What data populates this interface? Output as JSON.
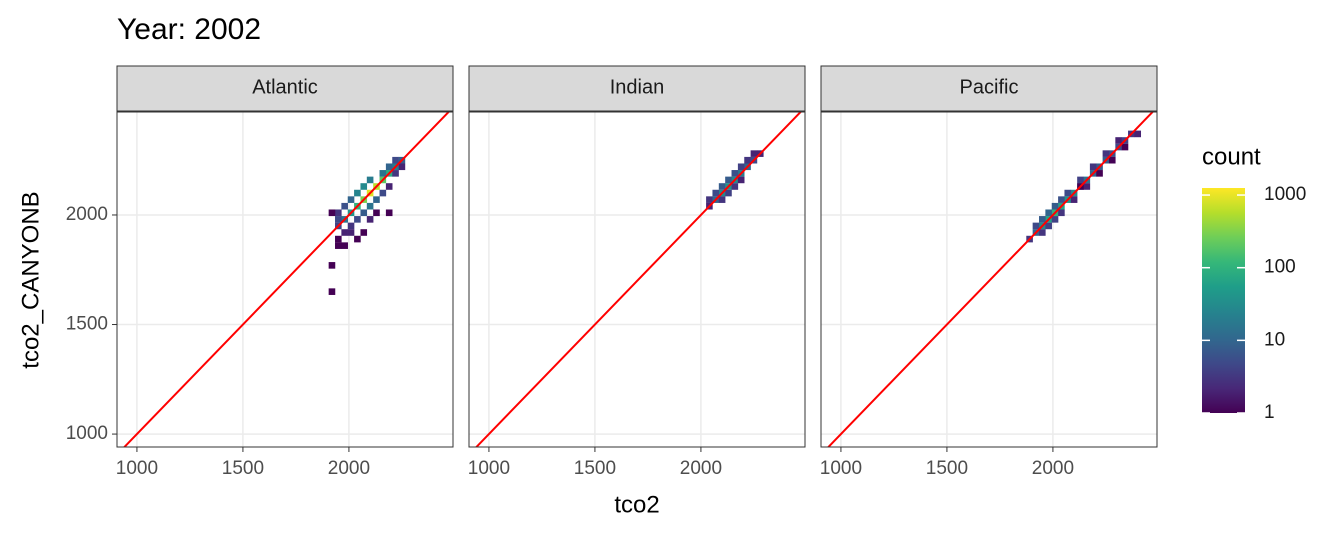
{
  "chart_data": {
    "type": "bin2d",
    "title": "Year: 2002",
    "x_label": "tco2",
    "y_label": "tco2_CANYONB",
    "xlim": [
      906,
      2491
    ],
    "ylim": [
      941,
      2470
    ],
    "xticks": [
      1000,
      1500,
      2000
    ],
    "yticks": [
      1000,
      1500,
      2000
    ],
    "grid": true,
    "reference_line_color": "#ff0000",
    "color_scale": "viridis",
    "color_log": true,
    "colorlim": [
      1,
      1250
    ],
    "colorticks": [
      1,
      10,
      100,
      1000
    ],
    "legend_title": "count",
    "facets": [
      {
        "name": "Atlantic",
        "x": [
          2100,
          2130,
          2070,
          2160,
          2040,
          2190,
          2010,
          2220,
          2250,
          1980,
          1950,
          2070,
          2100,
          2040,
          2130,
          2100,
          2010,
          2070,
          1980,
          2040,
          1950,
          1950,
          2160,
          2190,
          2220,
          2160,
          2010,
          1980,
          1950,
          2040,
          2010,
          2100,
          2130,
          2190,
          1920,
          1950,
          1920,
          1920,
          2070,
          1980,
          2220,
          2190,
          2250
        ],
        "y": [
          2100,
          2130,
          2070,
          2160,
          2040,
          2190,
          2010,
          2220,
          2250,
          1980,
          1980,
          2130,
          2160,
          2100,
          2070,
          2040,
          2070,
          2010,
          2040,
          1980,
          2010,
          1950,
          2190,
          2220,
          2250,
          2100,
          1950,
          1920,
          1890,
          1890,
          1920,
          1980,
          2010,
          2010,
          2010,
          1860,
          1650,
          1770,
          1920,
          1860,
          2190,
          2130,
          2220
        ],
        "count": [
          900,
          600,
          300,
          200,
          100,
          80,
          40,
          20,
          8,
          15,
          5,
          30,
          20,
          25,
          10,
          15,
          10,
          8,
          6,
          5,
          3,
          4,
          15,
          10,
          5,
          5,
          3,
          2,
          1,
          1,
          2,
          2,
          1,
          1,
          1,
          1,
          1,
          1,
          1,
          1,
          3,
          2,
          2
        ]
      },
      {
        "name": "Indian",
        "x": [
          2040,
          2070,
          2100,
          2130,
          2160,
          2190,
          2220,
          2250,
          2280,
          2070,
          2100,
          2130,
          2160,
          2190,
          2220,
          2250,
          2100,
          2130,
          2160,
          2190,
          2040
        ],
        "y": [
          2070,
          2070,
          2100,
          2130,
          2160,
          2190,
          2220,
          2250,
          2280,
          2100,
          2130,
          2160,
          2190,
          2220,
          2250,
          2280,
          2070,
          2100,
          2130,
          2160,
          2040
        ],
        "count": [
          3,
          10,
          30,
          40,
          30,
          20,
          10,
          5,
          2,
          5,
          8,
          8,
          6,
          4,
          3,
          2,
          3,
          4,
          3,
          2,
          2
        ]
      },
      {
        "name": "Pacific",
        "x": [
          1890,
          1920,
          1950,
          1980,
          2010,
          2040,
          2070,
          2100,
          2130,
          2160,
          2190,
          2220,
          2250,
          2280,
          2310,
          2340,
          2370,
          2400,
          1920,
          1950,
          1980,
          2010,
          2040,
          2070,
          2130,
          2190,
          2250,
          2310,
          1950,
          1980,
          2010,
          2040,
          2100,
          2160,
          2220,
          2280,
          2340,
          2130
        ],
        "y": [
          1890,
          1920,
          1950,
          1980,
          2010,
          2040,
          2070,
          2100,
          2130,
          2160,
          2190,
          2220,
          2250,
          2280,
          2310,
          2340,
          2370,
          2370,
          1950,
          1980,
          2010,
          2040,
          2070,
          2100,
          2160,
          2220,
          2280,
          2340,
          1920,
          1950,
          1980,
          2010,
          2070,
          2130,
          2190,
          2250,
          2310,
          2130
        ],
        "count": [
          3,
          10,
          30,
          60,
          100,
          60,
          40,
          30,
          20,
          15,
          10,
          8,
          8,
          6,
          5,
          4,
          3,
          2,
          5,
          8,
          10,
          8,
          6,
          5,
          4,
          3,
          3,
          2,
          3,
          4,
          4,
          3,
          2,
          2,
          1,
          1,
          1,
          1
        ]
      }
    ]
  }
}
